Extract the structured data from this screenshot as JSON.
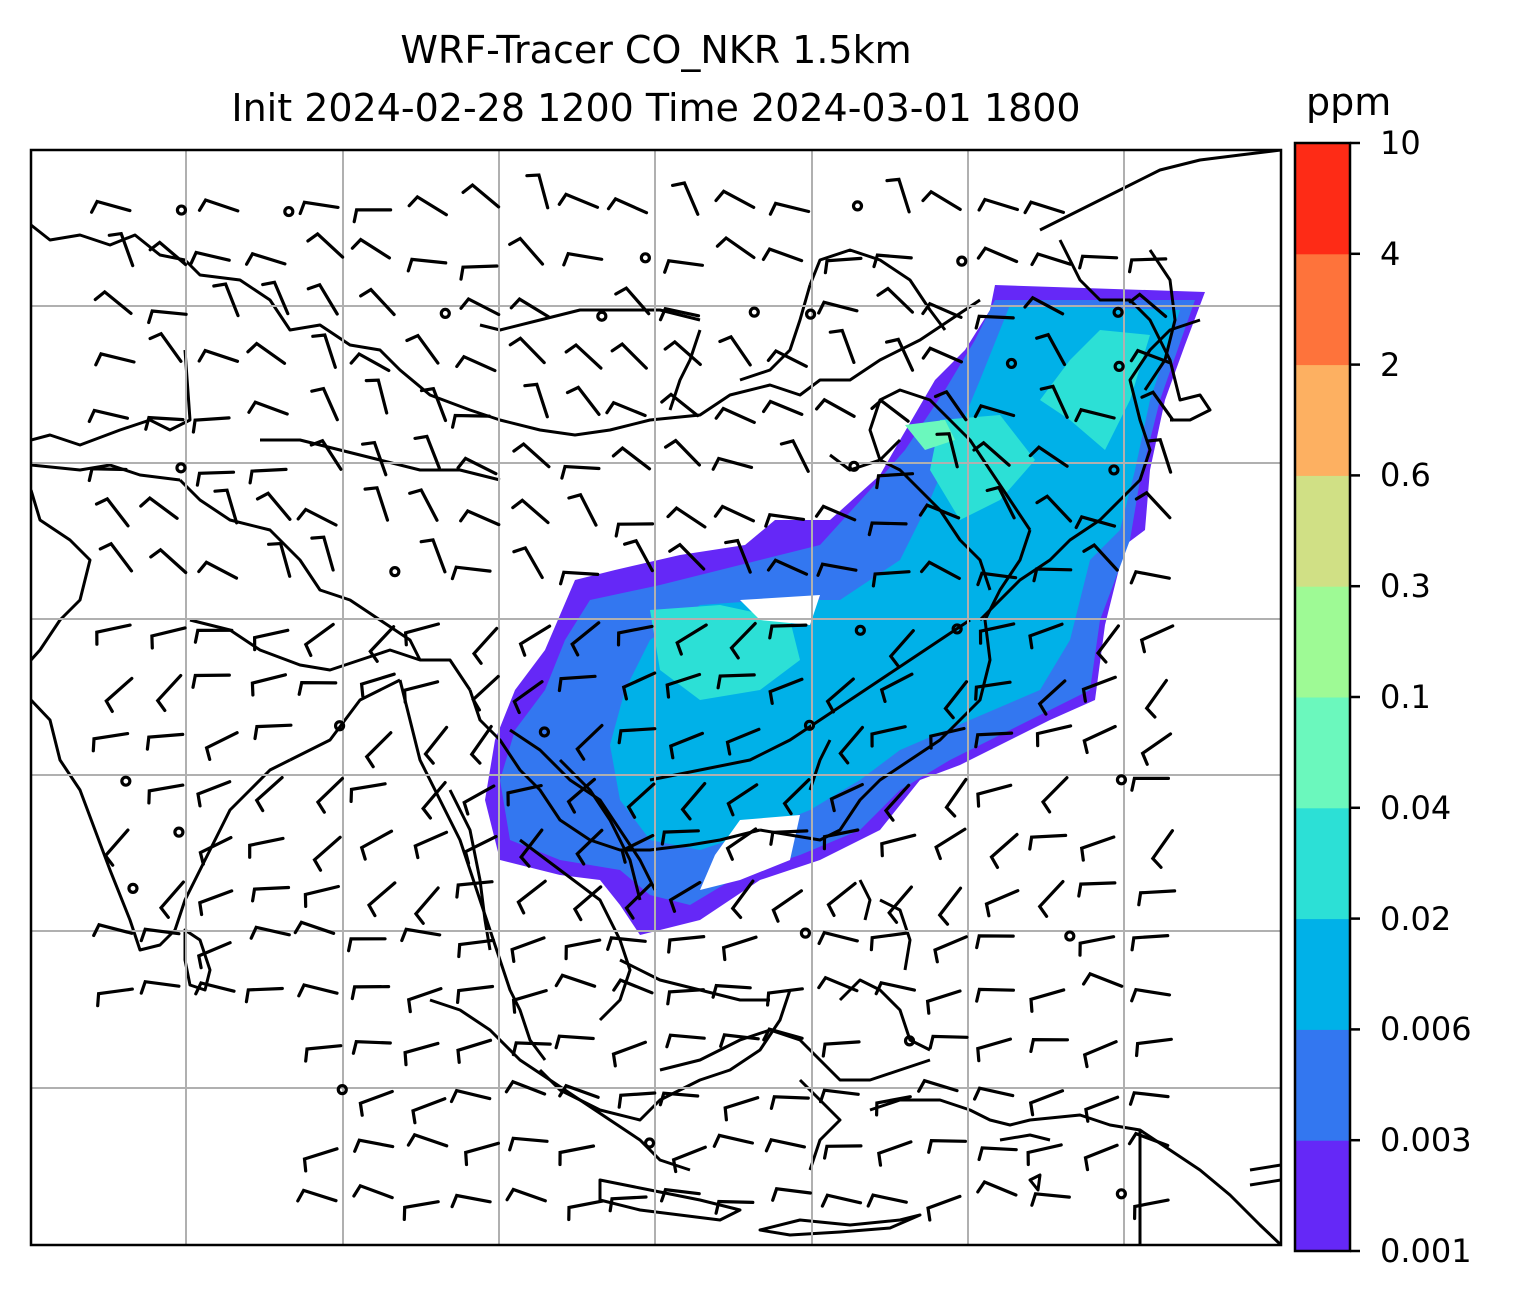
{
  "title": {
    "line1": "WRF-Tracer CO_NKR 1.5km",
    "line2": "Init 2024-02-28 1200 Time 2024-03-01 1800"
  },
  "colorbar": {
    "unit": "ppm",
    "ticks": [
      "0.001",
      "0.003",
      "0.006",
      "0.02",
      "0.04",
      "0.1",
      "0.3",
      "0.6",
      "2",
      "4",
      "10"
    ],
    "colors": [
      "#6528f7",
      "#3377f0",
      "#00b1e8",
      "#2ce0d6",
      "#6bf8bd",
      "#9efa95",
      "#d0e085",
      "#fdb061",
      "#fe733b",
      "#fe2b16"
    ]
  },
  "map": {
    "gridlines": true,
    "wind_barbs": true,
    "plume_color_levels": [
      "0.001",
      "0.003",
      "0.006",
      "0.02",
      "0.04"
    ]
  }
}
